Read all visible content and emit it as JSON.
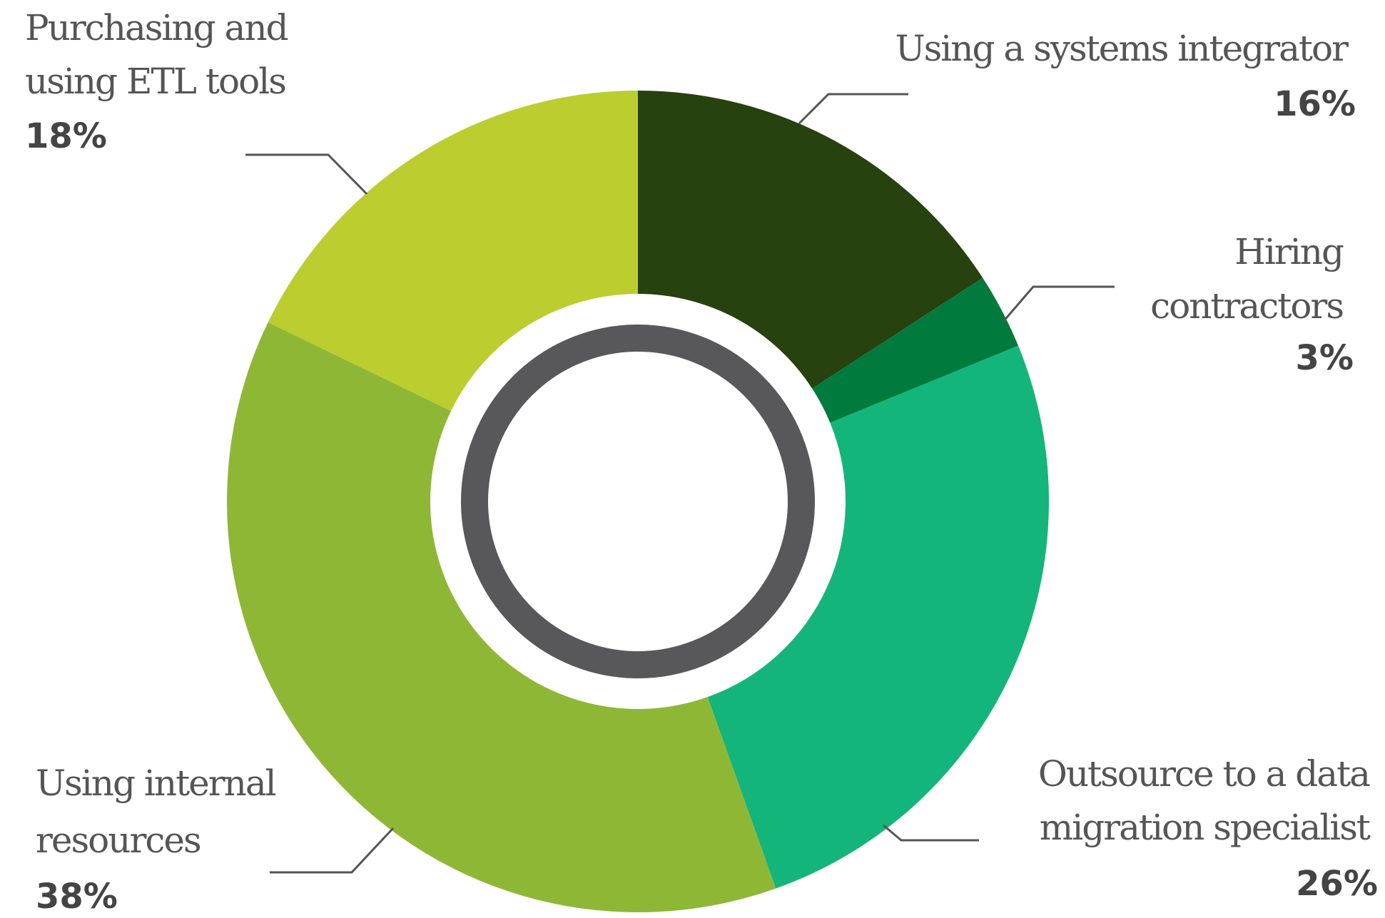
{
  "chart_data": {
    "type": "donut",
    "categories": [
      [
        "Using a systems integrator"
      ],
      [
        "Hiring",
        "contractors"
      ],
      [
        "Outsource to a data",
        "migration specialist"
      ],
      [
        "Using internal",
        "resources"
      ],
      [
        "Purchasing and",
        "using ETL tools"
      ]
    ],
    "values": [
      16,
      3,
      26,
      38,
      18
    ],
    "value_labels": [
      "16%",
      "3%",
      "26%",
      "38%",
      "18%"
    ],
    "colors": [
      "#27410f",
      "#007a3d",
      "#14b57a",
      "#8fb736",
      "#bccd2f"
    ]
  }
}
